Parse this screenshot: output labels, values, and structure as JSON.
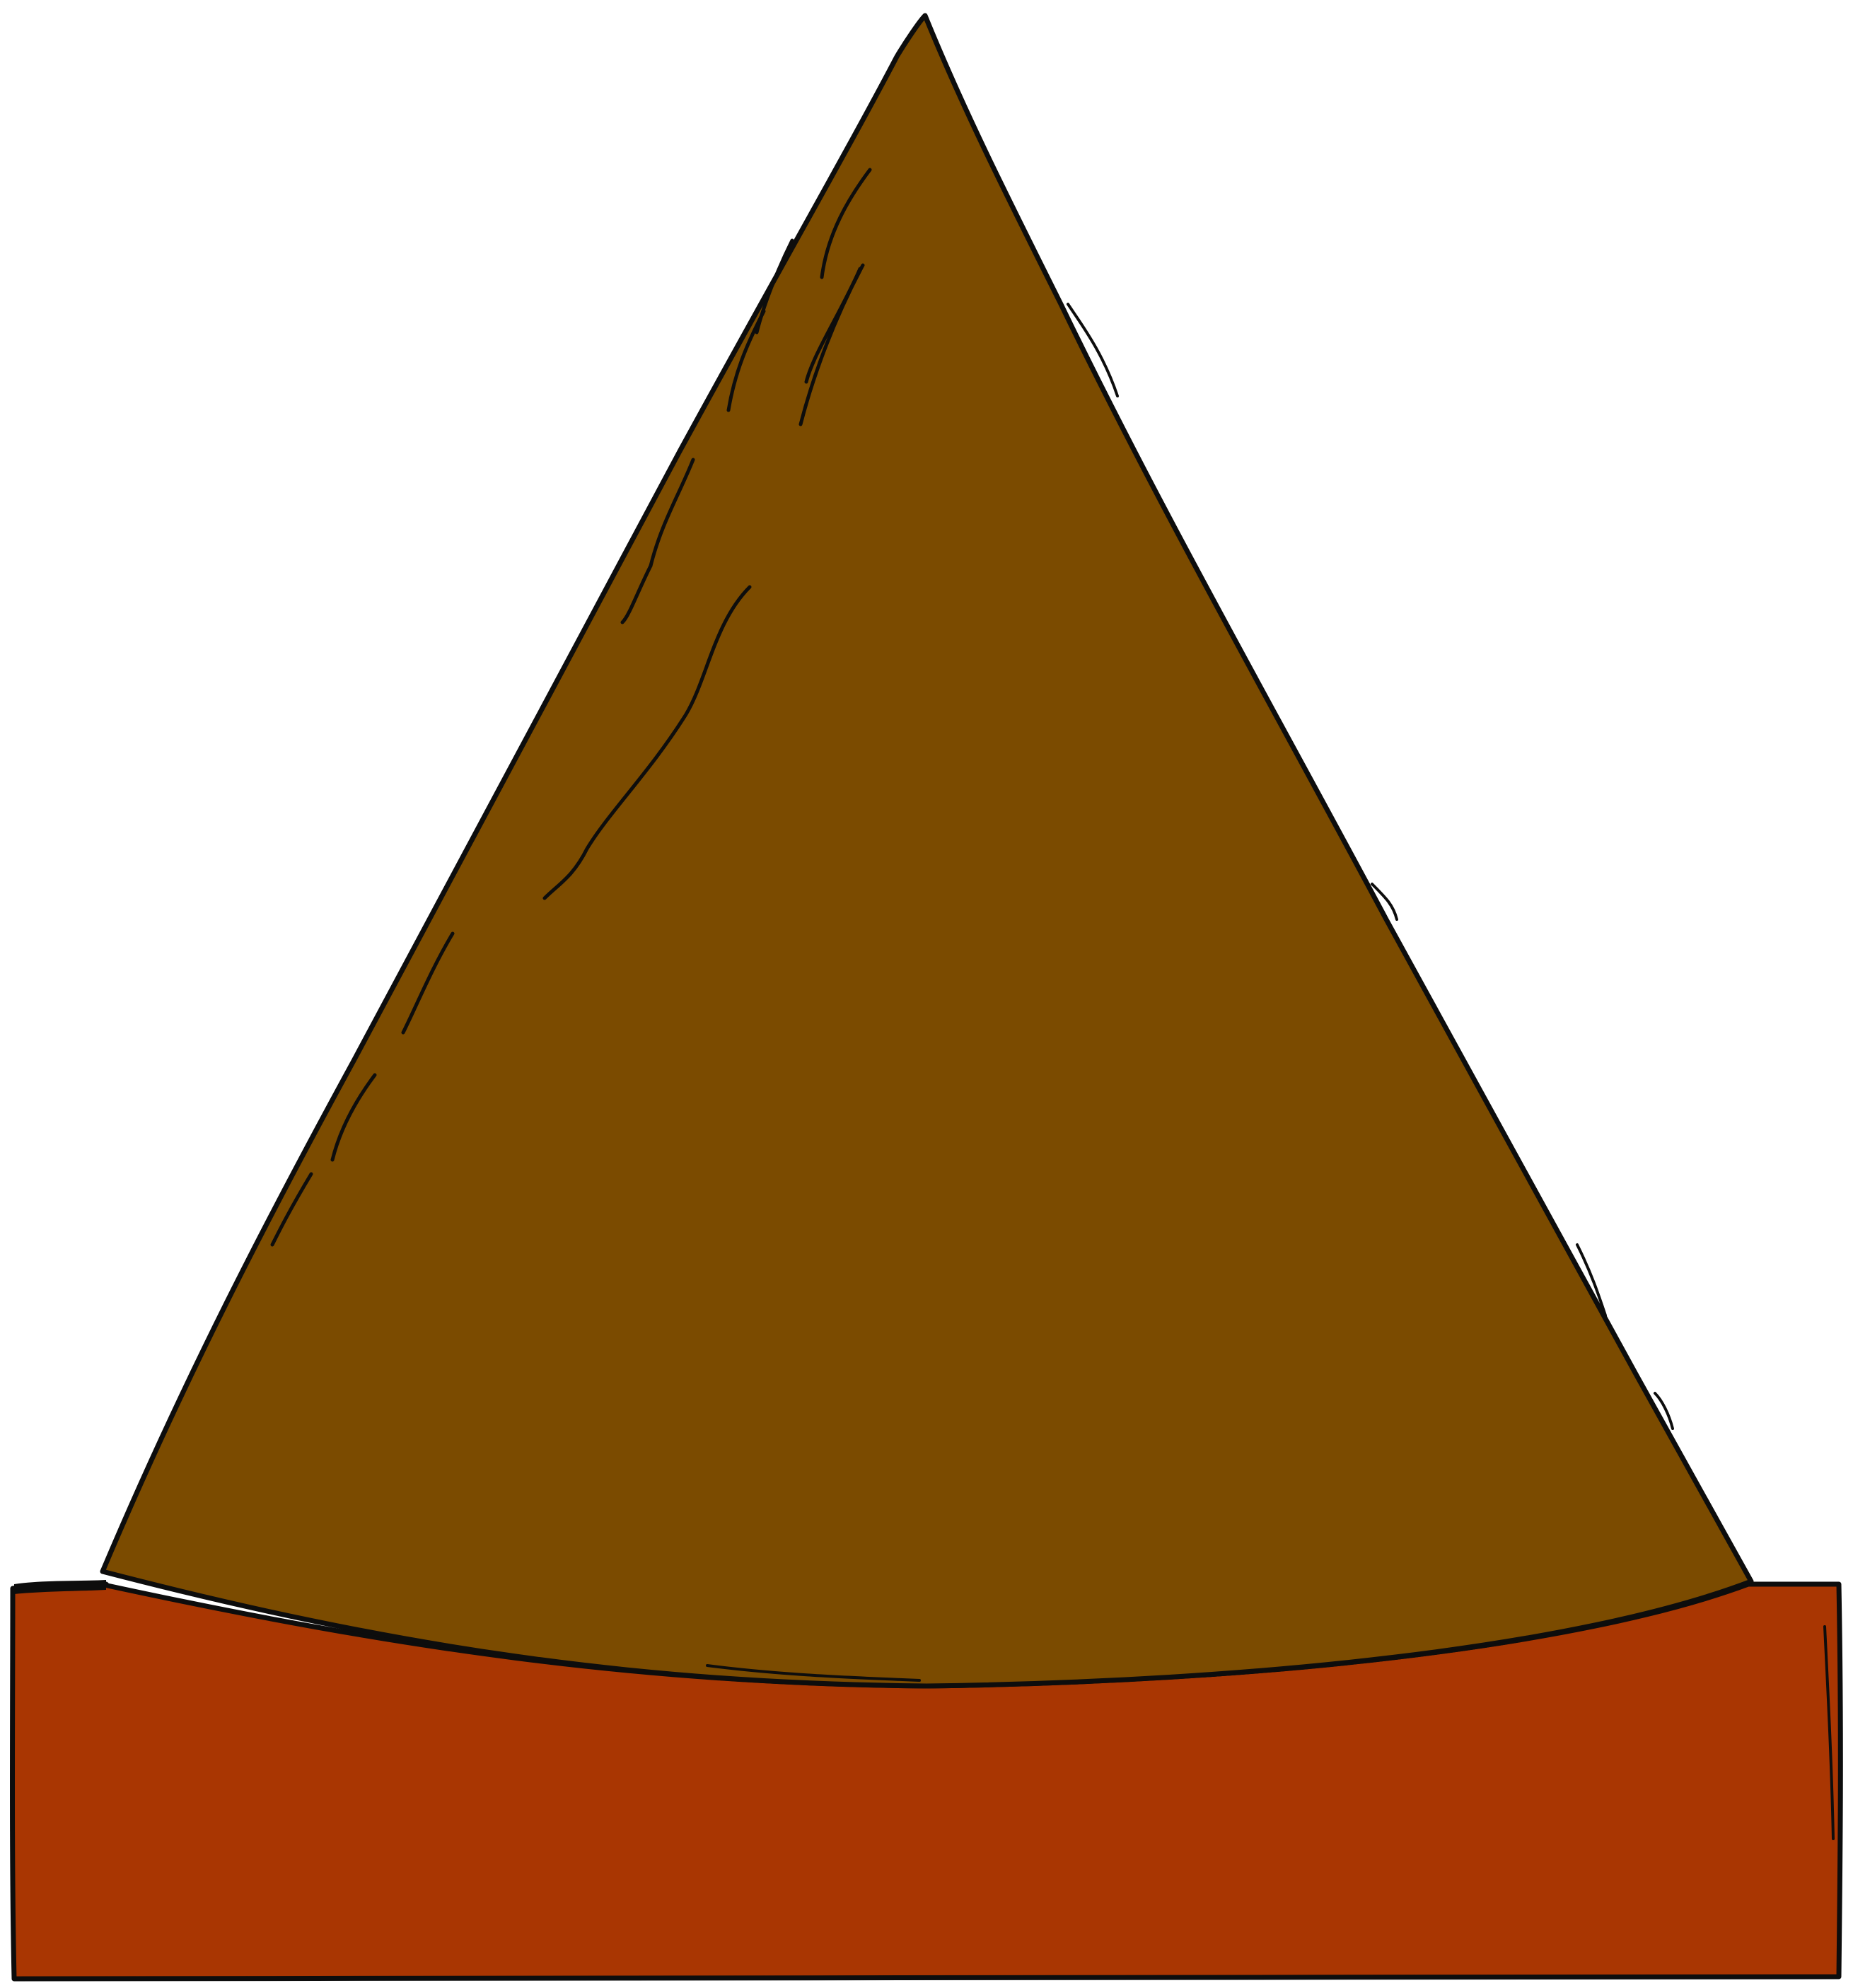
{
  "illustration": {
    "subject": "cone-on-block",
    "colors": {
      "background": "#ffffff",
      "cone_fill": "#7b4b00",
      "base_fill": "#a93602",
      "outline": "#0d0d0d"
    }
  }
}
